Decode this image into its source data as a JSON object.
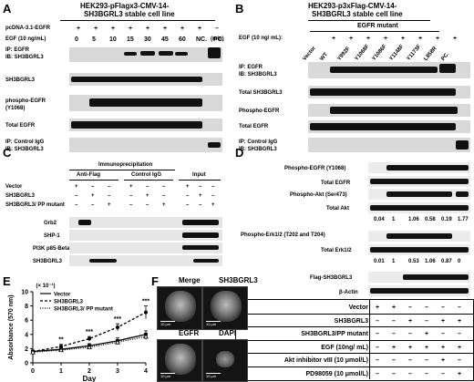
{
  "panels": {
    "A": "A",
    "B": "B",
    "C": "C",
    "D": "D",
    "E": "E",
    "F": "F"
  },
  "panel_a": {
    "title_line1": "HEK293-pFlagx3-CMV-14-",
    "title_line2": "SH3BGRL3 stable cell line",
    "top_label": "pcDNA-3.1-EGFR",
    "top_signs": [
      "+",
      "+",
      "+",
      "+",
      "+",
      "+",
      "+",
      "+",
      "–"
    ],
    "egf_label": "EGF (10 ng/mL)",
    "egf_values": [
      "0",
      "5",
      "10",
      "15",
      "30",
      "45",
      "60",
      "NC.",
      "PC."
    ],
    "unit": "(min)",
    "rows": [
      "IP: EGFR",
      "IB: SH3BGRL3",
      "SH3BGRL3",
      "phospho-EGFR",
      "(Y1068)",
      "Total EGFR",
      "IP: Control IgG",
      "IB: SH3BGRL3"
    ]
  },
  "panel_b": {
    "title_line1": "HEK293-p3xFlag-CMV-14-",
    "title_line2": "SH3BGRL3 stable cell line",
    "mutant_label": "EGFR mutant",
    "egf_label": "EGF (10 ng/ mL):",
    "lanes": [
      "Vector",
      "WT",
      "Y992F",
      "Y1068F",
      "Y1086F",
      "Y1148F",
      "Y1173F",
      "L858R",
      "PC."
    ],
    "signs": [
      "+",
      "+",
      "+",
      "+",
      "+",
      "+",
      "+",
      "+"
    ],
    "rows": [
      "IP: EGFR",
      "IB: SH3BGRL3",
      "Total SH3BGRL3",
      "Phospho-EGFR",
      "Total EGFR",
      "IP: Control IgG",
      "IB: SH3BGRL3"
    ]
  },
  "panel_c": {
    "ip_header": "Immunoprecipitation",
    "group1": "Anti-Flag",
    "group2": "Control IgG",
    "group3": "Input",
    "conditions": [
      "Vector",
      "SH3BGRL3",
      "SH3BGRL3/ PP mutant"
    ],
    "signs": [
      [
        "+",
        "–",
        "–",
        "+",
        "–",
        "–",
        "+",
        "–",
        "–"
      ],
      [
        "–",
        "+",
        "–",
        "–",
        "+",
        "–",
        "–",
        "+",
        "–"
      ],
      [
        "–",
        "–",
        "+",
        "–",
        "–",
        "+",
        "–",
        "–",
        "+"
      ]
    ],
    "rows": [
      "Grb2",
      "SHP-1",
      "PI3K p85-Beta",
      "SH3BGRL3"
    ]
  },
  "panel_d": {
    "rows": [
      "Phospho-EGFR (Y1068)",
      "Total EGFR",
      "Phospho-Akt (Ser473)",
      "Total Akt",
      "Phospho-Erk1/2 (T202 and T204)",
      "Total Erk1/2",
      "Flag-SH3BGRL3",
      "β-Actin"
    ],
    "akt_ratios": [
      "0.04",
      "1",
      "1.06",
      "0.58",
      "0.19",
      "1.77"
    ],
    "erk_ratios": [
      "0.01",
      "1",
      "0.53",
      "1.06",
      "0.87",
      "0"
    ],
    "table_rows": [
      {
        "label": "Vector",
        "signs": [
          "+",
          "+",
          "–",
          "–",
          "–",
          "–"
        ]
      },
      {
        "label": "SH3BGRL3",
        "signs": [
          "–",
          "–",
          "+",
          "–",
          "+",
          "+"
        ]
      },
      {
        "label": "SH3BGRL3/PP mutant",
        "signs": [
          "–",
          "–",
          "–",
          "+",
          "–",
          "–"
        ]
      },
      {
        "label": "EGF (10ng/ mL)",
        "signs": [
          "–",
          "+",
          "+",
          "+",
          "+",
          "+"
        ]
      },
      {
        "label": "Akt inhibitor vIII (10 μmol/L)",
        "signs": [
          "–",
          "–",
          "–",
          "–",
          "+",
          "–"
        ]
      },
      {
        "label": "PD98059 (10 μmol/L)",
        "signs": [
          "–",
          "–",
          "–",
          "–",
          "–",
          "+"
        ]
      }
    ]
  },
  "panel_f": {
    "labels": [
      "Merge",
      "SH3BGRL3",
      "EGFR",
      "DAPI"
    ],
    "scalebar": "10 μm"
  },
  "chart_data": {
    "type": "line",
    "ylabel": "Absorbance (570 nm)",
    "xlabel": "Day",
    "yscale_note": "(× 10⁻¹)",
    "x": [
      0,
      1,
      2,
      3,
      4
    ],
    "xlim": [
      0,
      4
    ],
    "ylim": [
      0,
      10
    ],
    "yticks": [
      "0",
      "2",
      "4",
      "6",
      "8",
      "10"
    ],
    "xticks": [
      "0",
      "1",
      "2",
      "3",
      "4"
    ],
    "series": [
      {
        "name": "Vector",
        "values": [
          1.6,
          1.9,
          2.4,
          3.1,
          4.0
        ],
        "errors": [
          0.2,
          0.2,
          0.3,
          0.4,
          0.5
        ],
        "color": "#000000",
        "dash": ""
      },
      {
        "name": "SH3BGRL3",
        "values": [
          1.6,
          2.3,
          3.4,
          5.0,
          7.1
        ],
        "errors": [
          0.2,
          0.3,
          0.3,
          0.5,
          0.9
        ],
        "color": "#000000",
        "dash": "3,2"
      },
      {
        "name": "SH3BGRL3/ PP mutant",
        "values": [
          1.5,
          1.8,
          2.2,
          2.9,
          3.7
        ],
        "errors": [
          0.2,
          0.2,
          0.3,
          0.3,
          0.4
        ],
        "color": "#000000",
        "dash": "1,1.5"
      }
    ],
    "significance": [
      {
        "x": 1,
        "label": "**"
      },
      {
        "x": 2,
        "label": "***"
      },
      {
        "x": 3,
        "label": "***"
      },
      {
        "x": 4,
        "label": "***"
      }
    ]
  }
}
